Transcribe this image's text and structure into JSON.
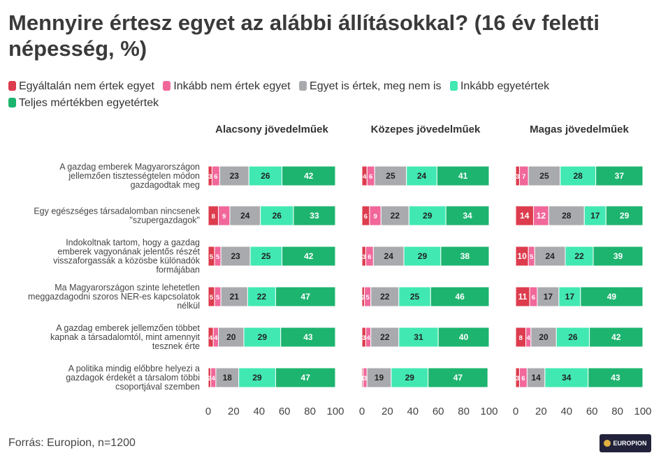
{
  "title": "Mennyire értesz egyet az alábbi állításokkal? (16 év feletti népesség, %)",
  "legend": [
    {
      "label": "Egyáltalán nem értek egyet",
      "color": "#dd3c4e"
    },
    {
      "label": "Inkább nem értek egyet",
      "color": "#f1679a"
    },
    {
      "label": "Egyet is értek, meg nem is",
      "color": "#a9aaad"
    },
    {
      "label": "Inkább egyetértek",
      "color": "#41e8b2"
    },
    {
      "label": "Teljes mértékben egyetértek",
      "color": "#1db46f"
    }
  ],
  "source": "Forrás: Europion, n=1200",
  "logo_text": "EUROPION",
  "chart_data": {
    "type": "bar",
    "orientation": "horizontal-stacked",
    "categories": [
      "A gazdag emberek Magyarországon jellemzően tisztességtelen módon gazdagodtak meg",
      "Egy egészséges társadalomban nincsenek \"szupergazdagok\"",
      "Indokoltnak tartom, hogy a gazdag emberek vagyonának jelentős részét visszaforgassák a közösbe különadók formájában",
      "Ma Magyarországon szinte lehetetlen meggazdagodni szoros NER-es kapcsolatok nélkül",
      "A gazdag emberek jellemzően többet kapnak a társadalomtól, mint amennyit tesznek érte",
      "A politika mindig előbbre helyezi a gazdagok érdekét a társalom többi csoportjával szemben"
    ],
    "category_lines": [
      [
        "A gazdag emberek Magyarországon",
        "jellemzően tisztességtelen módon",
        "gazdagodtak meg"
      ],
      [
        "Egy egészséges társadalomban nincsenek",
        "\"szupergazdagok\""
      ],
      [
        "Indokoltnak tartom, hogy a gazdag",
        "emberek vagyonának jelentős részét",
        "visszaforgassák a közösbe különadók",
        "formájában"
      ],
      [
        "Ma Magyarországon szinte lehetetlen",
        "meggazdagodni szoros NER-es kapcsolatok",
        "nélkül"
      ],
      [
        "A gazdag emberek jellemzően többet",
        "kapnak a társadalomtól, mint amennyit",
        "tesznek érte"
      ],
      [
        "A politika mindig előbbre helyezi a",
        "gazdagok érdekét a társalom többi",
        "csoportjával szemben"
      ]
    ],
    "segment_labels": [
      "Egyáltalán nem értek egyet",
      "Inkább nem értek egyet",
      "Egyet is értek, meg nem is",
      "Inkább egyetértek",
      "Teljes mértékben egyetértek"
    ],
    "xlim": [
      0,
      100
    ],
    "xticks": [
      "0",
      "20",
      "40",
      "60",
      "80",
      "100"
    ],
    "panels": [
      {
        "title": "Alacsony jövedelműek",
        "values": [
          [
            3,
            6,
            23,
            26,
            42
          ],
          [
            8,
            9,
            24,
            26,
            33
          ],
          [
            5,
            5,
            23,
            25,
            42
          ],
          [
            5,
            5,
            21,
            22,
            47
          ],
          [
            4,
            4,
            20,
            29,
            43
          ],
          [
            2,
            4,
            18,
            29,
            47
          ]
        ]
      },
      {
        "title": "Közepes jövedelműek",
        "values": [
          [
            4,
            6,
            25,
            24,
            41
          ],
          [
            6,
            9,
            22,
            29,
            34
          ],
          [
            3,
            6,
            24,
            29,
            38
          ],
          [
            2,
            5,
            22,
            25,
            46
          ],
          [
            3,
            4,
            22,
            31,
            40
          ],
          [
            1,
            3,
            19,
            29,
            47
          ]
        ]
      },
      {
        "title": "Magas jövedelműek",
        "values": [
          [
            3,
            7,
            25,
            28,
            37
          ],
          [
            14,
            12,
            28,
            17,
            29
          ],
          [
            10,
            5,
            24,
            22,
            39
          ],
          [
            11,
            6,
            17,
            17,
            49
          ],
          [
            8,
            4,
            20,
            26,
            42
          ],
          [
            3,
            6,
            14,
            34,
            43
          ]
        ]
      }
    ]
  }
}
